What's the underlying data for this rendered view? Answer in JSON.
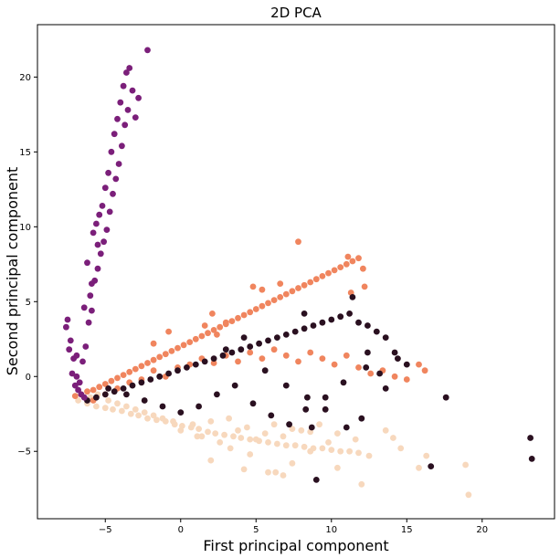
{
  "chart_data": {
    "type": "scatter",
    "title": "2D PCA",
    "xlabel": "First principal component",
    "ylabel": "Second principal component",
    "xlim": [
      -9.5,
      24.8
    ],
    "ylim": [
      -9.5,
      23.5
    ],
    "xticks": [
      -5,
      0,
      5,
      10,
      15,
      20
    ],
    "yticks": [
      -5,
      0,
      5,
      10,
      15,
      20
    ],
    "grid": false,
    "series": [
      {
        "color": "#f7d8bd",
        "x": [
          -6.8,
          -6.2,
          -5.6,
          -5.0,
          -4.5,
          -3.9,
          -3.3,
          -2.8,
          -2.2,
          -1.6,
          -1.0,
          -0.4,
          0.1,
          0.7,
          1.2,
          1.8,
          2.3,
          2.9,
          3.5,
          4.0,
          4.6,
          5.2,
          5.8,
          6.4,
          7.0,
          7.6,
          8.2,
          8.8,
          9.4,
          10.0,
          10.6,
          11.2,
          11.8,
          -5.5,
          -4.2,
          -3.0,
          -1.8,
          -0.5,
          0.8,
          2.0,
          3.2,
          4.4,
          5.6,
          6.8,
          8.0,
          9.2,
          10.4,
          11.6,
          -6.0,
          -4.8,
          -3.6,
          -2.4,
          -1.2,
          0.0,
          1.4,
          2.6,
          3.8,
          5.0,
          6.2,
          7.4,
          8.6,
          9.8,
          4.2,
          5.8,
          6.8,
          7.4,
          8.6,
          10.4,
          12.0,
          12.5,
          13.6,
          14.1,
          14.6,
          15.8,
          16.3,
          18.9,
          19.1,
          1.1,
          2.0,
          3.3,
          4.6,
          6.3
        ],
        "y": [
          -1.6,
          -1.8,
          -2.0,
          -2.1,
          -2.2,
          -2.3,
          -2.5,
          -2.6,
          -2.8,
          -2.9,
          -3.0,
          -3.2,
          -3.3,
          -3.4,
          -3.5,
          -3.7,
          -3.8,
          -3.9,
          -4.0,
          -4.1,
          -4.2,
          -4.3,
          -4.4,
          -4.5,
          -4.6,
          -4.6,
          -4.7,
          -4.8,
          -4.8,
          -4.9,
          -5.0,
          -5.0,
          -5.1,
          -1.2,
          -1.8,
          -2.2,
          -2.6,
          -3.0,
          -3.2,
          -3.0,
          -2.8,
          -3.4,
          -3.8,
          -4.0,
          -3.6,
          -3.2,
          -3.8,
          -4.2,
          -1.4,
          -1.6,
          -2.0,
          -2.4,
          -2.8,
          -3.6,
          -4.0,
          -4.4,
          -3.6,
          -4.2,
          -3.2,
          -3.5,
          -3.7,
          -4.4,
          -6.2,
          -6.4,
          -6.6,
          -5.8,
          -5.0,
          -6.1,
          -7.2,
          -5.3,
          -3.6,
          -4.1,
          -4.8,
          -6.1,
          -5.3,
          -5.9,
          -7.9,
          -4.0,
          -5.6,
          -4.8,
          -5.2,
          -6.4
        ]
      },
      {
        "color": "#f0855e",
        "x": [
          -7.0,
          -6.6,
          -6.2,
          -5.8,
          -5.4,
          -5.0,
          -4.6,
          -4.2,
          -3.8,
          -3.4,
          -3.0,
          -2.6,
          -2.2,
          -1.8,
          -1.4,
          -1.0,
          -0.6,
          -0.2,
          0.2,
          0.6,
          1.0,
          1.4,
          1.8,
          2.2,
          2.6,
          3.0,
          3.4,
          3.8,
          4.2,
          4.6,
          5.0,
          5.4,
          5.8,
          6.2,
          6.6,
          7.0,
          7.4,
          7.8,
          8.2,
          8.6,
          9.0,
          9.4,
          9.8,
          10.2,
          10.6,
          11.0,
          11.4,
          11.8,
          -5.8,
          -5.0,
          -4.2,
          -3.4,
          -2.6,
          -1.8,
          -1.0,
          -0.2,
          0.6,
          1.4,
          2.2,
          3.0,
          3.8,
          4.6,
          5.4,
          6.2,
          7.0,
          7.8,
          8.6,
          9.4,
          10.2,
          11.0,
          11.8,
          12.6,
          13.4,
          14.2,
          15.0,
          15.8,
          16.2,
          7.8,
          11.1,
          12.1,
          11.3,
          12.2,
          4.8,
          5.4,
          6.6,
          2.1,
          3.0,
          -0.8,
          -1.8,
          1.6,
          2.4
        ],
        "y": [
          -1.3,
          -1.2,
          -1.0,
          -0.9,
          -0.7,
          -0.5,
          -0.3,
          -0.1,
          0.1,
          0.3,
          0.5,
          0.7,
          0.9,
          1.1,
          1.3,
          1.5,
          1.7,
          1.9,
          2.1,
          2.3,
          2.5,
          2.7,
          2.9,
          3.1,
          3.3,
          3.5,
          3.7,
          3.9,
          4.1,
          4.3,
          4.5,
          4.7,
          4.9,
          5.1,
          5.3,
          5.5,
          5.7,
          5.9,
          6.1,
          6.3,
          6.5,
          6.7,
          6.9,
          7.1,
          7.3,
          7.5,
          7.7,
          7.9,
          -1.6,
          -1.2,
          -0.8,
          -0.4,
          -0.2,
          0.4,
          0.0,
          0.6,
          0.8,
          1.2,
          0.9,
          1.4,
          1.0,
          1.6,
          1.2,
          1.8,
          1.4,
          1.0,
          1.6,
          1.2,
          0.8,
          1.4,
          0.6,
          0.2,
          0.4,
          0.0,
          -0.2,
          0.8,
          0.4,
          9.0,
          8.0,
          7.2,
          5.6,
          6.0,
          6.0,
          5.8,
          6.2,
          4.2,
          3.6,
          3.0,
          2.2,
          3.4,
          2.8
        ]
      },
      {
        "color": "#2a1020",
        "x": [
          -6.2,
          -5.6,
          -5.0,
          -4.4,
          -3.8,
          -3.2,
          -2.6,
          -2.0,
          -1.4,
          -0.8,
          -0.2,
          0.4,
          1.0,
          1.6,
          2.2,
          2.8,
          3.4,
          4.0,
          4.6,
          5.2,
          5.8,
          6.4,
          7.0,
          7.6,
          8.2,
          8.8,
          9.4,
          10.0,
          10.6,
          11.2,
          11.8,
          12.4,
          13.0,
          13.6,
          14.2,
          -4.8,
          -3.6,
          -2.4,
          -1.2,
          0.0,
          1.2,
          2.4,
          3.6,
          4.8,
          6.0,
          7.2,
          8.4,
          9.6,
          10.8,
          12.0,
          13.2,
          14.4,
          3.0,
          4.2,
          5.6,
          7.0,
          8.3,
          9.6,
          11.0,
          12.3,
          13.6,
          15.0,
          16.6,
          17.6,
          23.2,
          23.3,
          8.7,
          11.4,
          12.4,
          9.0,
          8.2
        ],
        "y": [
          -1.6,
          -1.4,
          -1.2,
          -1.0,
          -0.8,
          -0.6,
          -0.4,
          -0.2,
          0.0,
          0.2,
          0.4,
          0.6,
          0.8,
          1.0,
          1.2,
          1.4,
          1.6,
          1.8,
          2.0,
          2.2,
          2.4,
          2.6,
          2.8,
          3.0,
          3.2,
          3.4,
          3.6,
          3.8,
          4.0,
          4.2,
          3.6,
          3.4,
          3.0,
          2.6,
          1.6,
          -0.8,
          -1.2,
          -1.6,
          -2.0,
          -2.4,
          -2.0,
          -1.2,
          -0.6,
          -1.8,
          -2.6,
          -3.2,
          -1.4,
          -2.2,
          -0.4,
          -2.8,
          0.2,
          1.2,
          1.8,
          2.6,
          0.4,
          -0.6,
          -2.2,
          -1.4,
          -3.4,
          0.6,
          -0.8,
          0.8,
          -6.0,
          -1.4,
          -4.1,
          -5.5,
          -3.4,
          5.3,
          1.6,
          -6.9,
          4.2
        ],
        "markers_note": ""
      },
      {
        "color": "#7b1f7a",
        "x": [
          -7.6,
          -7.4,
          -7.2,
          -7.0,
          -6.8,
          -6.6,
          -6.4,
          -6.2,
          -6.0,
          -5.8,
          -5.6,
          -5.4,
          -5.2,
          -5.0,
          -4.8,
          -4.6,
          -4.4,
          -4.2,
          -4.0,
          -3.8,
          -3.6,
          -3.4,
          -3.2,
          -3.0,
          -2.8,
          -2.2,
          -7.3,
          -7.1,
          -6.9,
          -6.7,
          -6.5,
          -6.3,
          -6.1,
          -5.9,
          -5.7,
          -5.5,
          -5.3,
          -5.1,
          -4.9,
          -4.7,
          -4.5,
          -4.3,
          -4.1,
          -3.9,
          -3.7,
          -3.5,
          -7.5,
          -6.9,
          -6.4,
          -5.9,
          -5.5
        ],
        "y": [
          3.3,
          1.8,
          0.2,
          -0.6,
          -0.9,
          -1.2,
          -1.4,
          7.6,
          5.4,
          9.6,
          10.2,
          10.8,
          11.4,
          12.6,
          13.6,
          15.0,
          16.2,
          17.2,
          18.3,
          19.4,
          20.3,
          20.6,
          19.1,
          17.3,
          18.6,
          21.8,
          2.4,
          1.2,
          0.0,
          -0.4,
          1.0,
          2.0,
          3.6,
          4.4,
          6.4,
          7.2,
          8.2,
          9.0,
          9.8,
          11.0,
          12.2,
          13.2,
          14.2,
          15.4,
          16.8,
          17.8,
          3.8,
          1.4,
          4.6,
          6.2,
          8.8
        ]
      }
    ]
  }
}
